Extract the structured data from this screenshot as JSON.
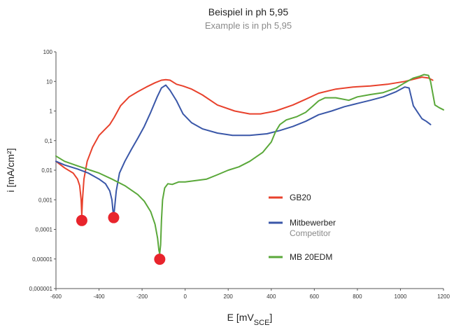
{
  "header": {
    "title": "Beispiel in ph 5,95",
    "subtitle": "Example is in ph 5,95"
  },
  "chart_data": {
    "type": "line",
    "xlabel": "E [mV",
    "xlabel_sub": "SCE",
    "xlabel_end": "]",
    "ylabel": "i [mA/cm²]",
    "xlim": [
      -600,
      1200
    ],
    "ylim": [
      1e-06,
      100
    ],
    "y_scale": "log",
    "grid": false,
    "legend_position": "right",
    "x_ticks": [
      "-600",
      "-400",
      "-200",
      "0",
      "200",
      "400",
      "600",
      "800",
      "1000",
      "1200"
    ],
    "y_ticks": [
      "100",
      "10",
      "1",
      "0,1",
      "0,01",
      "0,001",
      "0,0001",
      "0,00001",
      "0,000001"
    ],
    "series": [
      {
        "name": "GB20",
        "color": "#e8412c",
        "x": [
          -600,
          -560,
          -520,
          -500,
          -490,
          -483,
          -480,
          -477,
          -470,
          -455,
          -430,
          -400,
          -370,
          -350,
          -330,
          -300,
          -260,
          -220,
          -180,
          -140,
          -110,
          -90,
          -70,
          -40,
          -10,
          30,
          80,
          150,
          230,
          300,
          350,
          420,
          500,
          560,
          620,
          700,
          780,
          860,
          940,
          1020,
          1100,
          1130,
          1150
        ],
        "y": [
          0.02,
          0.012,
          0.008,
          0.005,
          0.003,
          0.001,
          0.0003,
          0.001,
          0.005,
          0.02,
          0.06,
          0.15,
          0.25,
          0.35,
          0.6,
          1.5,
          3,
          4.5,
          6.5,
          9,
          11,
          11.5,
          11,
          8,
          7,
          5.5,
          3.5,
          1.6,
          1,
          0.8,
          0.8,
          1,
          1.6,
          2.5,
          4,
          5.5,
          6.5,
          7,
          8,
          10,
          14,
          13,
          11
        ]
      },
      {
        "name": "Mitbewerber",
        "name_sub": "Competitor",
        "color": "#3a57a8",
        "x": [
          -600,
          -560,
          -500,
          -450,
          -400,
          -370,
          -350,
          -340,
          -335,
          -332,
          -328,
          -320,
          -305,
          -280,
          -250,
          -220,
          -190,
          -160,
          -130,
          -110,
          -90,
          -70,
          -40,
          -10,
          30,
          80,
          150,
          220,
          300,
          380,
          440,
          500,
          560,
          620,
          680,
          740,
          800,
          860,
          920,
          980,
          1020,
          1040,
          1060,
          1080,
          1100,
          1120,
          1140
        ],
        "y": [
          0.02,
          0.015,
          0.011,
          0.008,
          0.005,
          0.0035,
          0.002,
          0.001,
          0.0004,
          0.00025,
          0.0005,
          0.002,
          0.008,
          0.02,
          0.05,
          0.12,
          0.3,
          0.9,
          3,
          6,
          7.5,
          5,
          2.2,
          0.8,
          0.4,
          0.25,
          0.18,
          0.15,
          0.15,
          0.17,
          0.22,
          0.3,
          0.45,
          0.75,
          1,
          1.4,
          1.8,
          2.3,
          3,
          4.5,
          6.5,
          6,
          1.5,
          0.9,
          0.55,
          0.45,
          0.35
        ]
      },
      {
        "name": "MB 20EDM",
        "color": "#5aa83a",
        "x": [
          -600,
          -560,
          -500,
          -440,
          -400,
          -340,
          -280,
          -220,
          -190,
          -160,
          -140,
          -128,
          -122,
          -118,
          -114,
          -110,
          -105,
          -95,
          -80,
          -60,
          -30,
          0,
          50,
          100,
          150,
          200,
          250,
          300,
          360,
          400,
          420,
          440,
          470,
          520,
          560,
          590,
          620,
          650,
          700,
          760,
          800,
          860,
          920,
          980,
          1020,
          1060,
          1090,
          1110,
          1130,
          1140,
          1160,
          1180,
          1200
        ],
        "y": [
          0.03,
          0.02,
          0.014,
          0.01,
          0.008,
          0.005,
          0.003,
          0.0015,
          0.0009,
          0.0004,
          0.00015,
          5e-05,
          2e-05,
          1.5e-05,
          3e-05,
          0.0002,
          0.001,
          0.0025,
          0.0035,
          0.0033,
          0.004,
          0.004,
          0.0045,
          0.005,
          0.007,
          0.01,
          0.013,
          0.02,
          0.04,
          0.09,
          0.2,
          0.35,
          0.5,
          0.65,
          0.9,
          1.4,
          2.2,
          2.8,
          2.8,
          2.3,
          3,
          3.6,
          4.2,
          6,
          9,
          13,
          15,
          17,
          16,
          10,
          1.6,
          1.3,
          1.1
        ]
      }
    ],
    "markers": [
      {
        "x": -480,
        "y": 0.0002
      },
      {
        "x": -332,
        "y": 0.00025
      },
      {
        "x": -118,
        "y": 9.8e-06
      }
    ],
    "marker_color": "#e8242c",
    "axis_color": "#555555"
  }
}
